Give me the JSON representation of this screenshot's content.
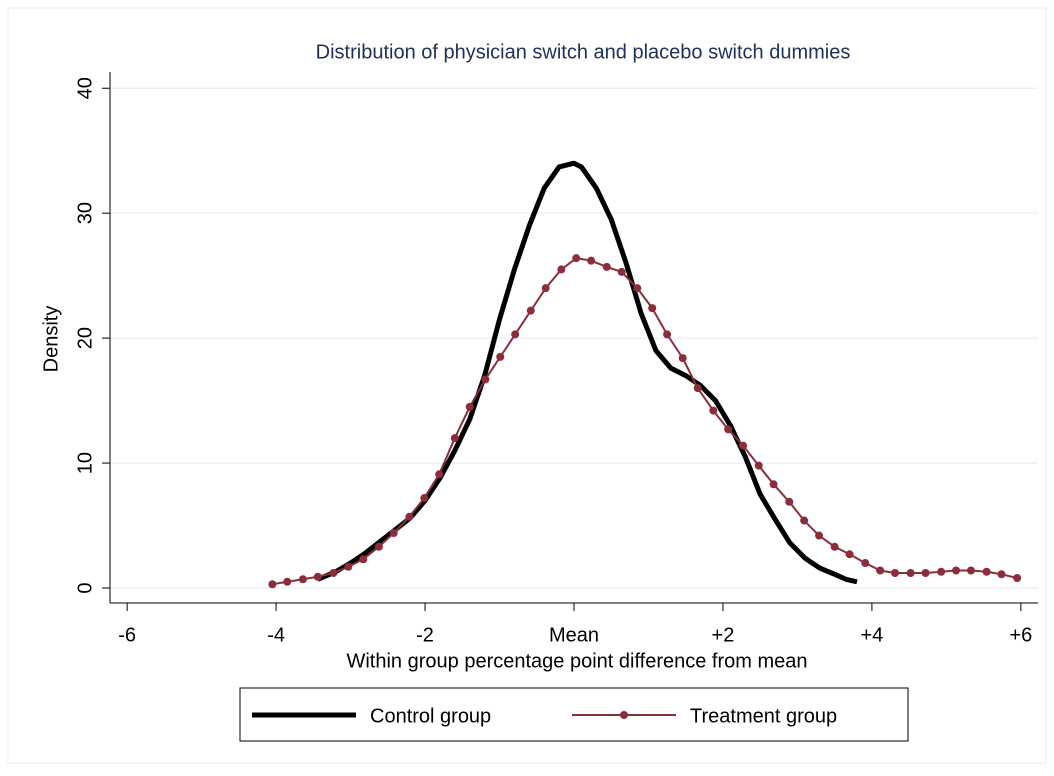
{
  "chart_data": {
    "type": "line",
    "title": "Distribution of physician switch and placebo switch dummies",
    "x_label": "Within group percentage point difference from mean",
    "y_label": "Density",
    "xlim": [
      -6.23,
      6.23
    ],
    "ylim": [
      -1.2,
      41.3
    ],
    "xticks": [
      -6,
      -4,
      -2,
      {
        "value": 0,
        "label": "Mean"
      },
      {
        "value": 2,
        "label": "+2"
      },
      {
        "value": 4,
        "label": "+4"
      },
      {
        "value": 6,
        "label": "+6"
      }
    ],
    "yticks": [
      0,
      10,
      20,
      30,
      40
    ],
    "grid": true,
    "legend_position": "bottom",
    "series": [
      {
        "name": "Control group",
        "color": "#000000",
        "x": [
          -3.44,
          -3.2,
          -3.0,
          -2.8,
          -2.5,
          -2.2,
          -2.0,
          -1.8,
          -1.6,
          -1.4,
          -1.2,
          -1.0,
          -0.8,
          -0.6,
          -0.4,
          -0.2,
          0,
          0.1,
          0.3,
          0.5,
          0.7,
          0.9,
          1.1,
          1.3,
          1.5,
          1.7,
          1.9,
          2.1,
          2.3,
          2.5,
          2.7,
          2.9,
          3.1,
          3.3,
          3.5,
          3.65,
          3.8
        ],
        "values": [
          0.7,
          1.3,
          2.0,
          2.8,
          4.2,
          5.6,
          7.0,
          8.8,
          11.0,
          13.5,
          17.0,
          21.5,
          25.5,
          29.0,
          32.0,
          33.7,
          34.0,
          33.7,
          32.0,
          29.5,
          26.0,
          22.0,
          19.0,
          17.6,
          17.0,
          16.2,
          15.0,
          13.0,
          10.5,
          7.5,
          5.5,
          3.6,
          2.4,
          1.6,
          1.1,
          0.7,
          0.5
        ]
      },
      {
        "name": "Treatment group",
        "color": "#8b2e3a",
        "x": [
          -4.05,
          -3.85,
          -3.64,
          -3.44,
          -3.23,
          -3.03,
          -2.83,
          -2.62,
          -2.42,
          -2.21,
          -2.01,
          -1.81,
          -1.6,
          -1.4,
          -1.19,
          -0.99,
          -0.79,
          -0.58,
          -0.38,
          -0.17,
          0.03,
          0.23,
          0.44,
          0.64,
          0.85,
          1.05,
          1.25,
          1.46,
          1.66,
          1.87,
          2.07,
          2.27,
          2.48,
          2.68,
          2.89,
          3.09,
          3.29,
          3.5,
          3.7,
          3.91,
          4.11,
          4.31,
          4.52,
          4.72,
          4.93,
          5.13,
          5.33,
          5.54,
          5.74,
          5.95
        ],
        "values": [
          0.3,
          0.5,
          0.7,
          0.9,
          1.2,
          1.7,
          2.3,
          3.3,
          4.4,
          5.7,
          7.2,
          9.1,
          12.0,
          14.5,
          16.7,
          18.5,
          20.3,
          22.2,
          24.0,
          25.5,
          26.4,
          26.2,
          25.7,
          25.3,
          24.0,
          22.4,
          20.3,
          18.4,
          16.0,
          14.2,
          12.7,
          11.4,
          9.8,
          8.3,
          6.9,
          5.4,
          4.2,
          3.3,
          2.7,
          2.0,
          1.4,
          1.2,
          1.2,
          1.2,
          1.3,
          1.4,
          1.4,
          1.3,
          1.1,
          0.8
        ]
      }
    ]
  }
}
